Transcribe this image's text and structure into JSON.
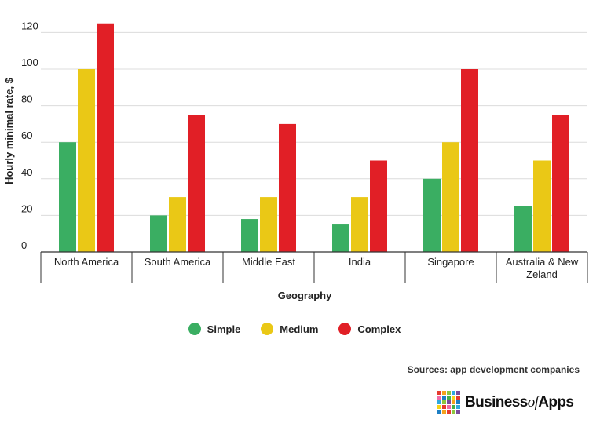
{
  "chart_data": {
    "type": "bar",
    "title": "",
    "xlabel": "Geography",
    "ylabel": "Hourly minimal rate, $",
    "ylim": [
      0,
      130
    ],
    "yticks": [
      0,
      20,
      40,
      60,
      80,
      100,
      120
    ],
    "grid": true,
    "legend_position": "bottom-center",
    "categories": [
      [
        "North America"
      ],
      [
        "South America"
      ],
      [
        "Middle East"
      ],
      [
        "India"
      ],
      [
        "Singapore"
      ],
      [
        "Australia & New",
        "Zeland"
      ]
    ],
    "series": [
      {
        "name": "Simple",
        "color": "#3aae62",
        "values": [
          60,
          20,
          18,
          15,
          40,
          25
        ]
      },
      {
        "name": "Medium",
        "color": "#eac816",
        "values": [
          100,
          30,
          30,
          30,
          60,
          50
        ]
      },
      {
        "name": "Complex",
        "color": "#e11f26",
        "values": [
          125,
          75,
          70,
          50,
          100,
          75
        ]
      }
    ]
  },
  "footer": {
    "source": "Sources: app development companies",
    "brand": {
      "part1": "Business",
      "part2": "of",
      "part3": "Apps",
      "tile_colors": [
        "#e63a2e",
        "#f4a21d",
        "#8cc63f",
        "#2fa8e0",
        "#7a4b9c",
        "#f06aa8",
        "#1d7fc4",
        "#43b049",
        "#f7d417",
        "#e63a2e",
        "#2fa8e0",
        "#8cc63f",
        "#7a4b9c",
        "#f4a21d",
        "#1d7fc4",
        "#f7d417",
        "#e63a2e",
        "#f06aa8",
        "#43b049",
        "#2fa8e0",
        "#1d7fc4",
        "#f4a21d",
        "#e63a2e",
        "#8cc63f",
        "#7a4b9c"
      ]
    }
  }
}
